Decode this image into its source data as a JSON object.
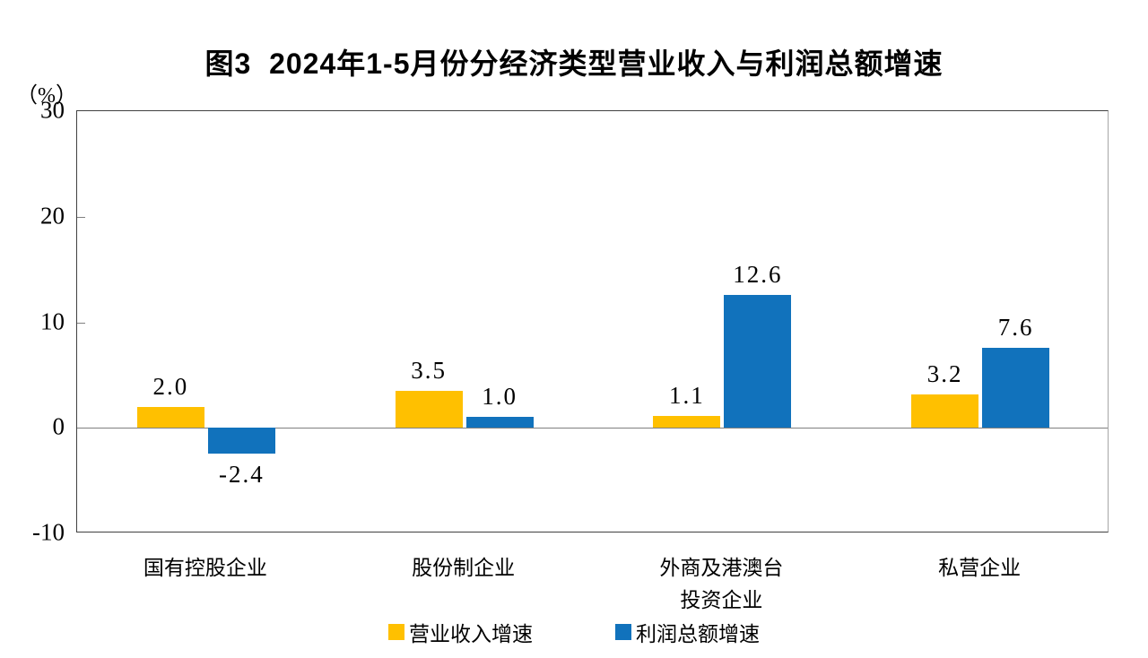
{
  "chart_data": {
    "type": "bar",
    "title": "图3  2024年1-5月份分经济类型营业收入与利润总额增速",
    "ylabel": "（%）",
    "ylim": [
      -10,
      30
    ],
    "yticks": [
      30,
      20,
      10,
      0,
      -10
    ],
    "grid": false,
    "legend_position": "bottom",
    "categories": [
      "国有控股企业",
      "股份制企业",
      "外商及港澳台\n投资企业",
      "私营企业"
    ],
    "series": [
      {
        "name": "营业收入增速",
        "color": "#FFC000",
        "values": [
          2.0,
          3.5,
          1.1,
          3.2
        ]
      },
      {
        "name": "利润总额增速",
        "color": "#1172BC",
        "values": [
          -2.4,
          1.0,
          12.6,
          7.6
        ]
      }
    ],
    "value_label_decimals": 1
  },
  "frame": {
    "zero_line_color": "#808080",
    "axis_color": "#404040"
  }
}
